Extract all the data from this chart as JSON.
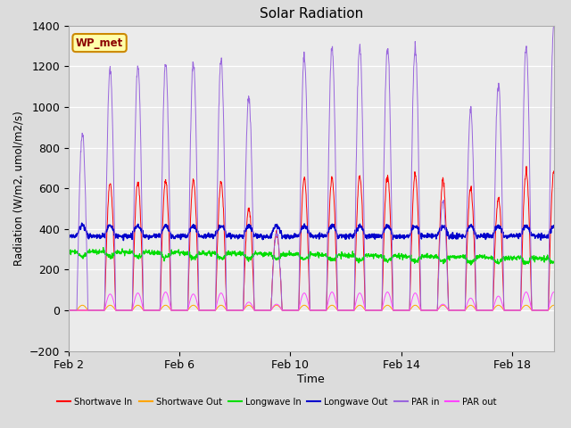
{
  "title": "Solar Radiation",
  "ylabel": "Radiation (W/m2, umol/m2/s)",
  "xlabel": "Time",
  "ylim": [
    -200,
    1400
  ],
  "yticks": [
    -200,
    0,
    200,
    400,
    600,
    800,
    1000,
    1200,
    1400
  ],
  "fig_bg": "#dcdcdc",
  "plot_bg": "#ebebeb",
  "grid_color": "#ffffff",
  "legend_label": "WP_met",
  "x_tick_labels": [
    "Feb 2",
    "Feb 6",
    "Feb 10",
    "Feb 14",
    "Feb 18"
  ],
  "x_tick_positions": [
    0,
    4,
    8,
    12,
    16
  ],
  "xlim": [
    0,
    17.5
  ],
  "series_labels": [
    "Shortwave In",
    "Shortwave Out",
    "Longwave In",
    "Longwave Out",
    "PAR in",
    "PAR out"
  ],
  "series_colors": [
    "#ff0000",
    "#ffa500",
    "#00dd00",
    "#0000cc",
    "#9966dd",
    "#ff44ff"
  ],
  "n_days": 18,
  "samples_per_day": 96
}
